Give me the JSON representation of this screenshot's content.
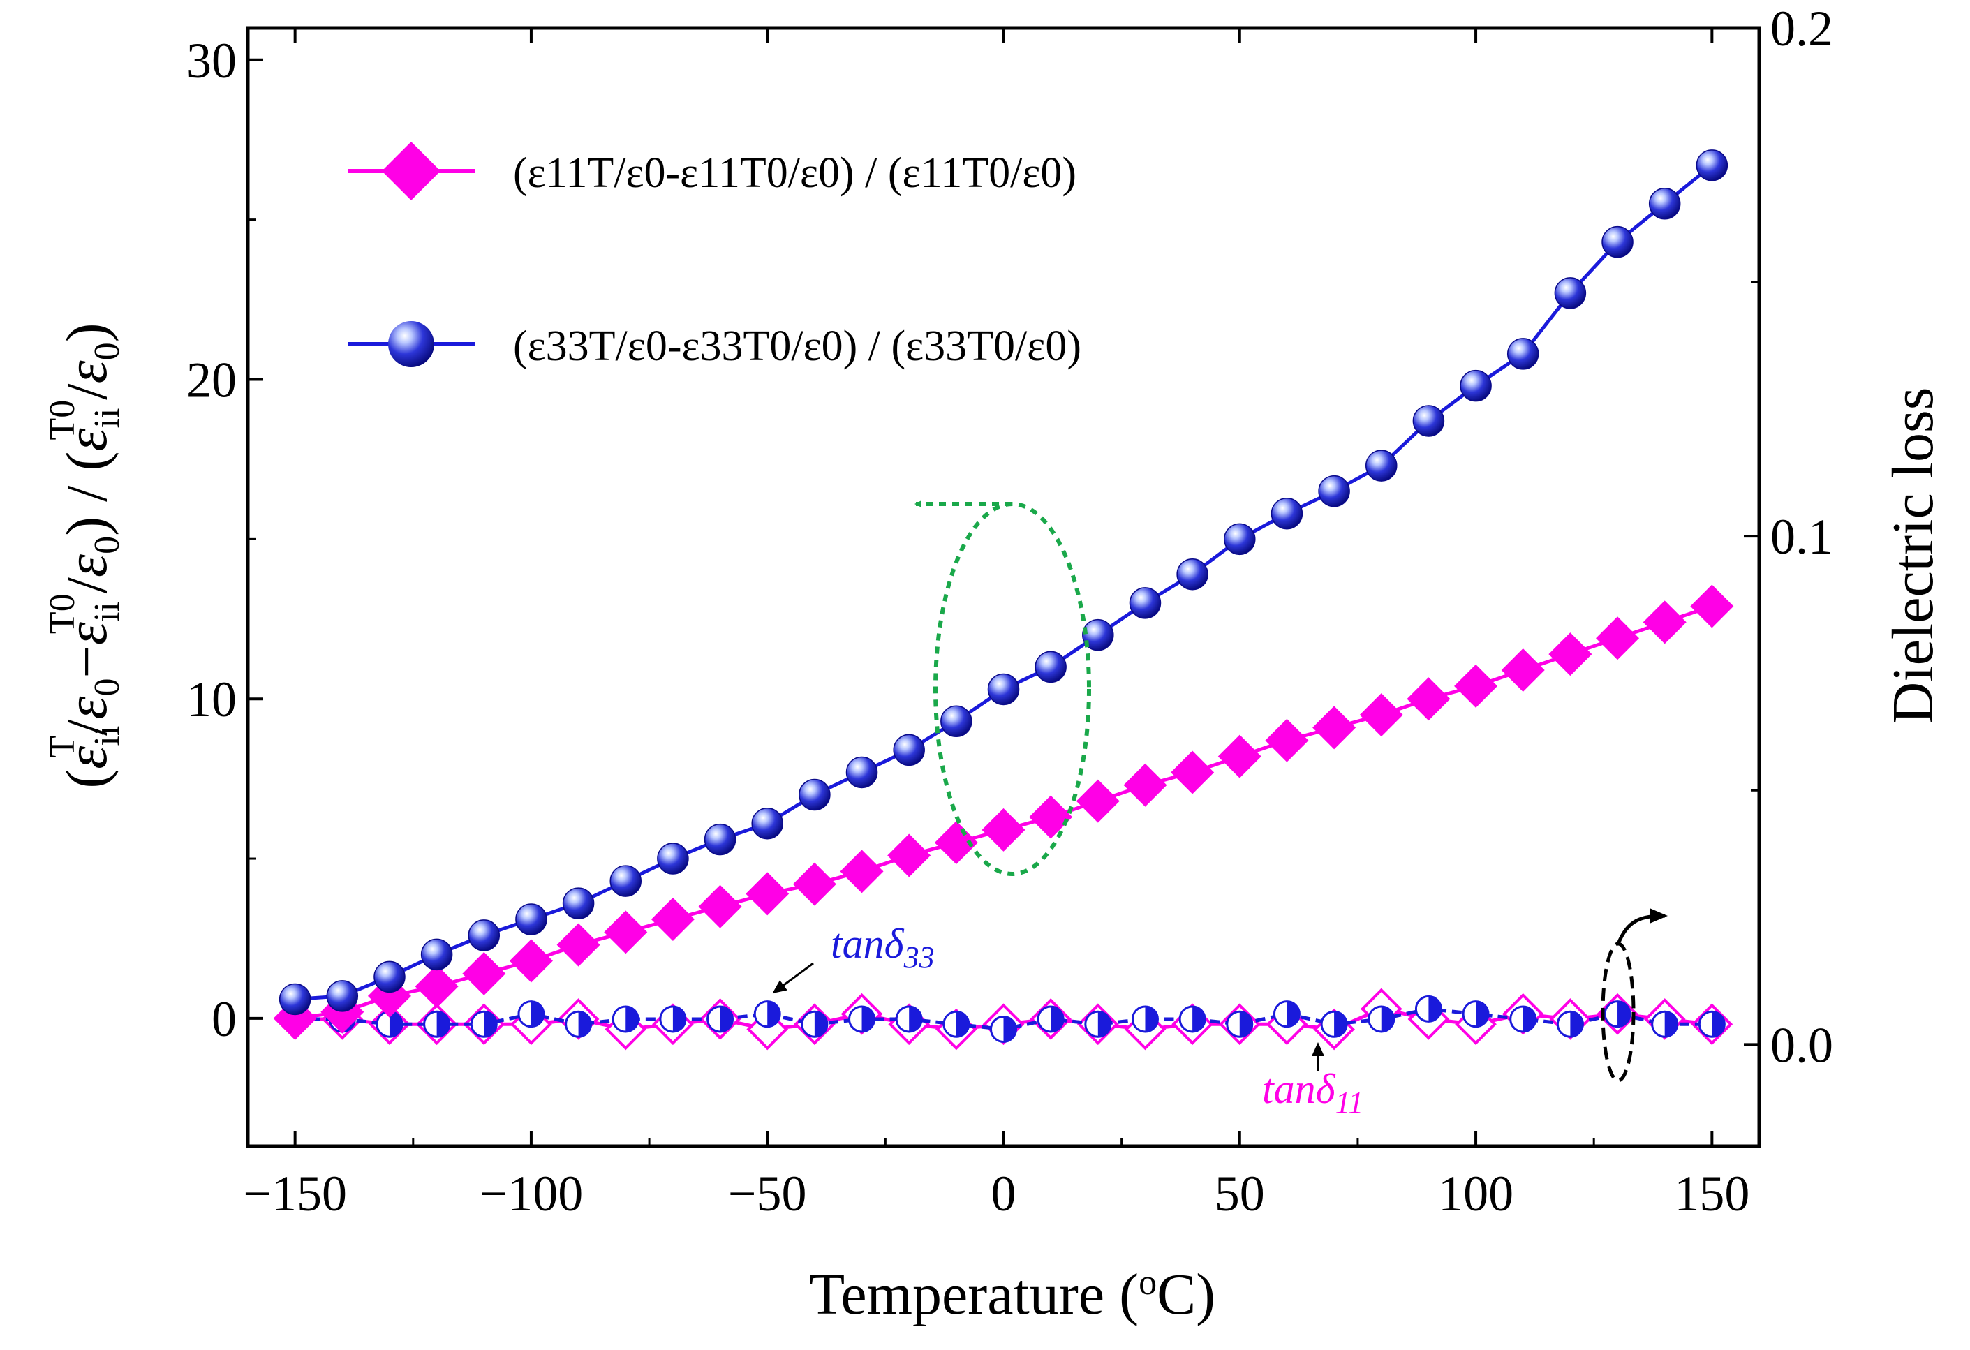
{
  "chart_data": {
    "type": "line",
    "x": [
      -150,
      -140,
      -130,
      -120,
      -110,
      -100,
      -90,
      -80,
      -70,
      -60,
      -50,
      -40,
      -30,
      -20,
      -10,
      0,
      10,
      20,
      30,
      40,
      50,
      60,
      70,
      80,
      90,
      100,
      110,
      120,
      130,
      140,
      150
    ],
    "xlabel": {
      "main": "Temperature (",
      "sup": "o",
      "end": "C)"
    },
    "ylabel_left": "(εiiT/ε0−εiiT0/ε0) / (εiiT0/ε0)",
    "ylabel_right": "Dielectric loss",
    "xlim": [
      -160,
      160
    ],
    "ylim_left": [
      -4,
      31
    ],
    "ylim_right": [
      -0.02,
      0.2
    ],
    "xticks": [
      -150,
      -100,
      -50,
      0,
      50,
      100,
      150
    ],
    "xtick_labels": [
      "−150",
      "−100",
      "−50",
      "0",
      "50",
      "100",
      "150"
    ],
    "yticks_left": [
      0,
      10,
      20,
      30
    ],
    "ytick_labels_left": [
      "0",
      "10",
      "20",
      "30"
    ],
    "yticks_right": [
      0.0,
      0.1,
      0.2
    ],
    "ytick_labels_right": [
      "0.0",
      "0.1",
      "0.2"
    ],
    "series": [
      {
        "name": "(ε11T/ε0-ε11T0/ε0) / (ε11T0/ε0)",
        "axis": "left",
        "color": "#ff00e6",
        "marker": "diamond",
        "values": [
          0.0,
          0.2,
          0.7,
          1.0,
          1.4,
          1.8,
          2.3,
          2.7,
          3.1,
          3.5,
          3.9,
          4.2,
          4.6,
          5.1,
          5.5,
          5.9,
          6.3,
          6.8,
          7.3,
          7.7,
          8.2,
          8.7,
          9.1,
          9.5,
          10.0,
          10.4,
          10.9,
          11.4,
          11.9,
          12.4,
          12.9
        ]
      },
      {
        "name": "(ε33T/ε0-ε33T0/ε0) / (ε33T0/ε0)",
        "axis": "left",
        "color": "#1a1adb",
        "marker": "sphere",
        "values": [
          0.6,
          0.7,
          1.3,
          2.0,
          2.6,
          3.1,
          3.6,
          4.3,
          5.0,
          5.6,
          6.1,
          7.0,
          7.7,
          8.4,
          9.3,
          10.3,
          11.0,
          12.0,
          13.0,
          13.9,
          15.0,
          15.8,
          16.5,
          17.3,
          18.7,
          19.8,
          20.8,
          22.7,
          24.3,
          25.5,
          26.7
        ]
      },
      {
        "name": "tanδ11",
        "axis": "right",
        "color": "#ff00e6",
        "marker": "diamond-open",
        "values": [
          0.005,
          0.005,
          0.004,
          0.004,
          0.004,
          0.004,
          0.005,
          0.003,
          0.004,
          0.005,
          0.003,
          0.004,
          0.006,
          0.004,
          0.003,
          0.004,
          0.005,
          0.004,
          0.003,
          0.004,
          0.004,
          0.004,
          0.003,
          0.007,
          0.005,
          0.004,
          0.006,
          0.005,
          0.006,
          0.005,
          0.004
        ]
      },
      {
        "name": "tanδ33",
        "axis": "right",
        "color": "#1a1adb",
        "marker": "half-circle",
        "dashed": true,
        "values": [
          0.005,
          0.005,
          0.004,
          0.004,
          0.004,
          0.006,
          0.004,
          0.005,
          0.005,
          0.005,
          0.006,
          0.004,
          0.005,
          0.005,
          0.004,
          0.003,
          0.005,
          0.004,
          0.005,
          0.005,
          0.004,
          0.006,
          0.004,
          0.005,
          0.007,
          0.006,
          0.005,
          0.004,
          0.006,
          0.004,
          0.004
        ]
      }
    ],
    "annotations": [
      {
        "base": "tanδ",
        "sub": "33",
        "color": "#1a1adb"
      },
      {
        "base": "tanδ",
        "sub": "11",
        "color": "#ff00e6"
      }
    ]
  }
}
